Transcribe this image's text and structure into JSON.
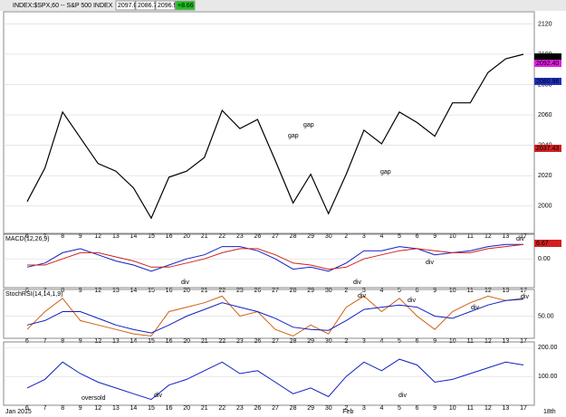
{
  "chart_data": [
    {
      "type": "line",
      "title": "INDEX:$SPX,60 -- S&P 500 INDEX",
      "header": [
        "2097.03",
        "2086.70",
        "2096.99",
        "+8.66"
      ],
      "categories": [
        "6",
        "7",
        "8",
        "9",
        "12",
        "13",
        "14",
        "15",
        "16",
        "20",
        "21",
        "22",
        "23",
        "26",
        "27",
        "28",
        "29",
        "30",
        "2",
        "3",
        "4",
        "5",
        "6",
        "9",
        "10",
        "11",
        "12",
        "13",
        "17"
      ],
      "period_labels": [
        "Jan 2015",
        "Feb",
        "18th"
      ],
      "annotations": [
        "gap",
        "gap",
        "gap"
      ],
      "series": [
        {
          "color": "#000000",
          "values": [
            2003,
            2025,
            2062,
            2045,
            2028,
            2023,
            2012,
            1992,
            2019,
            2023,
            2032,
            2063,
            2051,
            2057,
            2030,
            2002,
            2021,
            1995,
            2021,
            2050,
            2041,
            2062,
            2055,
            2046,
            2068,
            2068,
            2088,
            2097,
            2100
          ]
        }
      ],
      "ylim": [
        1982,
        2128
      ],
      "yticks": [
        2000,
        2020,
        2040,
        2060,
        2080,
        2100,
        2120
      ],
      "grid": true,
      "last_labels": [
        {
          "label": "2096.76",
          "color": "#000000"
        },
        {
          "label": "2092.40",
          "color": "#e020e0"
        },
        {
          "label": "2080.96",
          "color": "#2030c0"
        },
        {
          "label": "2037.43",
          "color": "#d02020"
        }
      ]
    },
    {
      "type": "line",
      "title": "MACD(12,26,9)",
      "annotations": [
        "div",
        "div",
        "div",
        "div"
      ],
      "series": [
        {
          "color": "#1020c0",
          "values": [
            -4,
            -2,
            3,
            5,
            2,
            -1,
            -3,
            -6,
            -3,
            0,
            2,
            6,
            6,
            4,
            0,
            -5,
            -4,
            -6,
            -2,
            4,
            4,
            6,
            5,
            2,
            3,
            4,
            6,
            7,
            7
          ]
        },
        {
          "color": "#d02020",
          "values": [
            -3,
            -3,
            0,
            3,
            3,
            1,
            -1,
            -4,
            -4,
            -2,
            0,
            3,
            5,
            5,
            2,
            -2,
            -3,
            -5,
            -4,
            0,
            2,
            4,
            5,
            4,
            3,
            3,
            5,
            6,
            7
          ]
        }
      ],
      "ylim": [
        -14,
        12
      ],
      "yticks": [
        {
          "value": 0,
          "label": "0.00"
        }
      ],
      "grid": true,
      "last_labels": [
        {
          "label": "6.67",
          "color": "#d02020"
        }
      ]
    },
    {
      "type": "line",
      "title": "StochRSI(14,14,1,9)",
      "annotations": [
        "div",
        "div",
        "div",
        "div"
      ],
      "series": [
        {
          "color": "#d06010",
          "values": [
            20,
            60,
            90,
            40,
            30,
            20,
            10,
            5,
            60,
            70,
            80,
            95,
            50,
            60,
            20,
            5,
            30,
            10,
            70,
            95,
            60,
            90,
            50,
            20,
            60,
            80,
            95,
            85,
            90
          ]
        },
        {
          "color": "#1020c0",
          "values": [
            30,
            40,
            60,
            60,
            45,
            30,
            20,
            12,
            30,
            50,
            65,
            80,
            70,
            60,
            45,
            25,
            20,
            18,
            40,
            65,
            70,
            75,
            70,
            50,
            45,
            60,
            75,
            85,
            88
          ]
        }
      ],
      "ylim": [
        0,
        110
      ],
      "yticks": [
        {
          "value": 50,
          "label": "50.00"
        }
      ],
      "grid": true
    },
    {
      "type": "line",
      "annotations": [
        "oversold",
        "div",
        "div"
      ],
      "series": [
        {
          "color": "#1020c0",
          "values": [
            60,
            90,
            150,
            110,
            80,
            60,
            40,
            20,
            70,
            90,
            120,
            150,
            110,
            120,
            80,
            40,
            60,
            30,
            100,
            150,
            120,
            160,
            140,
            80,
            90,
            110,
            130,
            150,
            140
          ]
        }
      ],
      "ylim": [
        0,
        220
      ],
      "yticks": [
        {
          "value": 100,
          "label": "100.00"
        },
        {
          "value": 200,
          "label": "200.00"
        }
      ],
      "grid": true
    }
  ]
}
